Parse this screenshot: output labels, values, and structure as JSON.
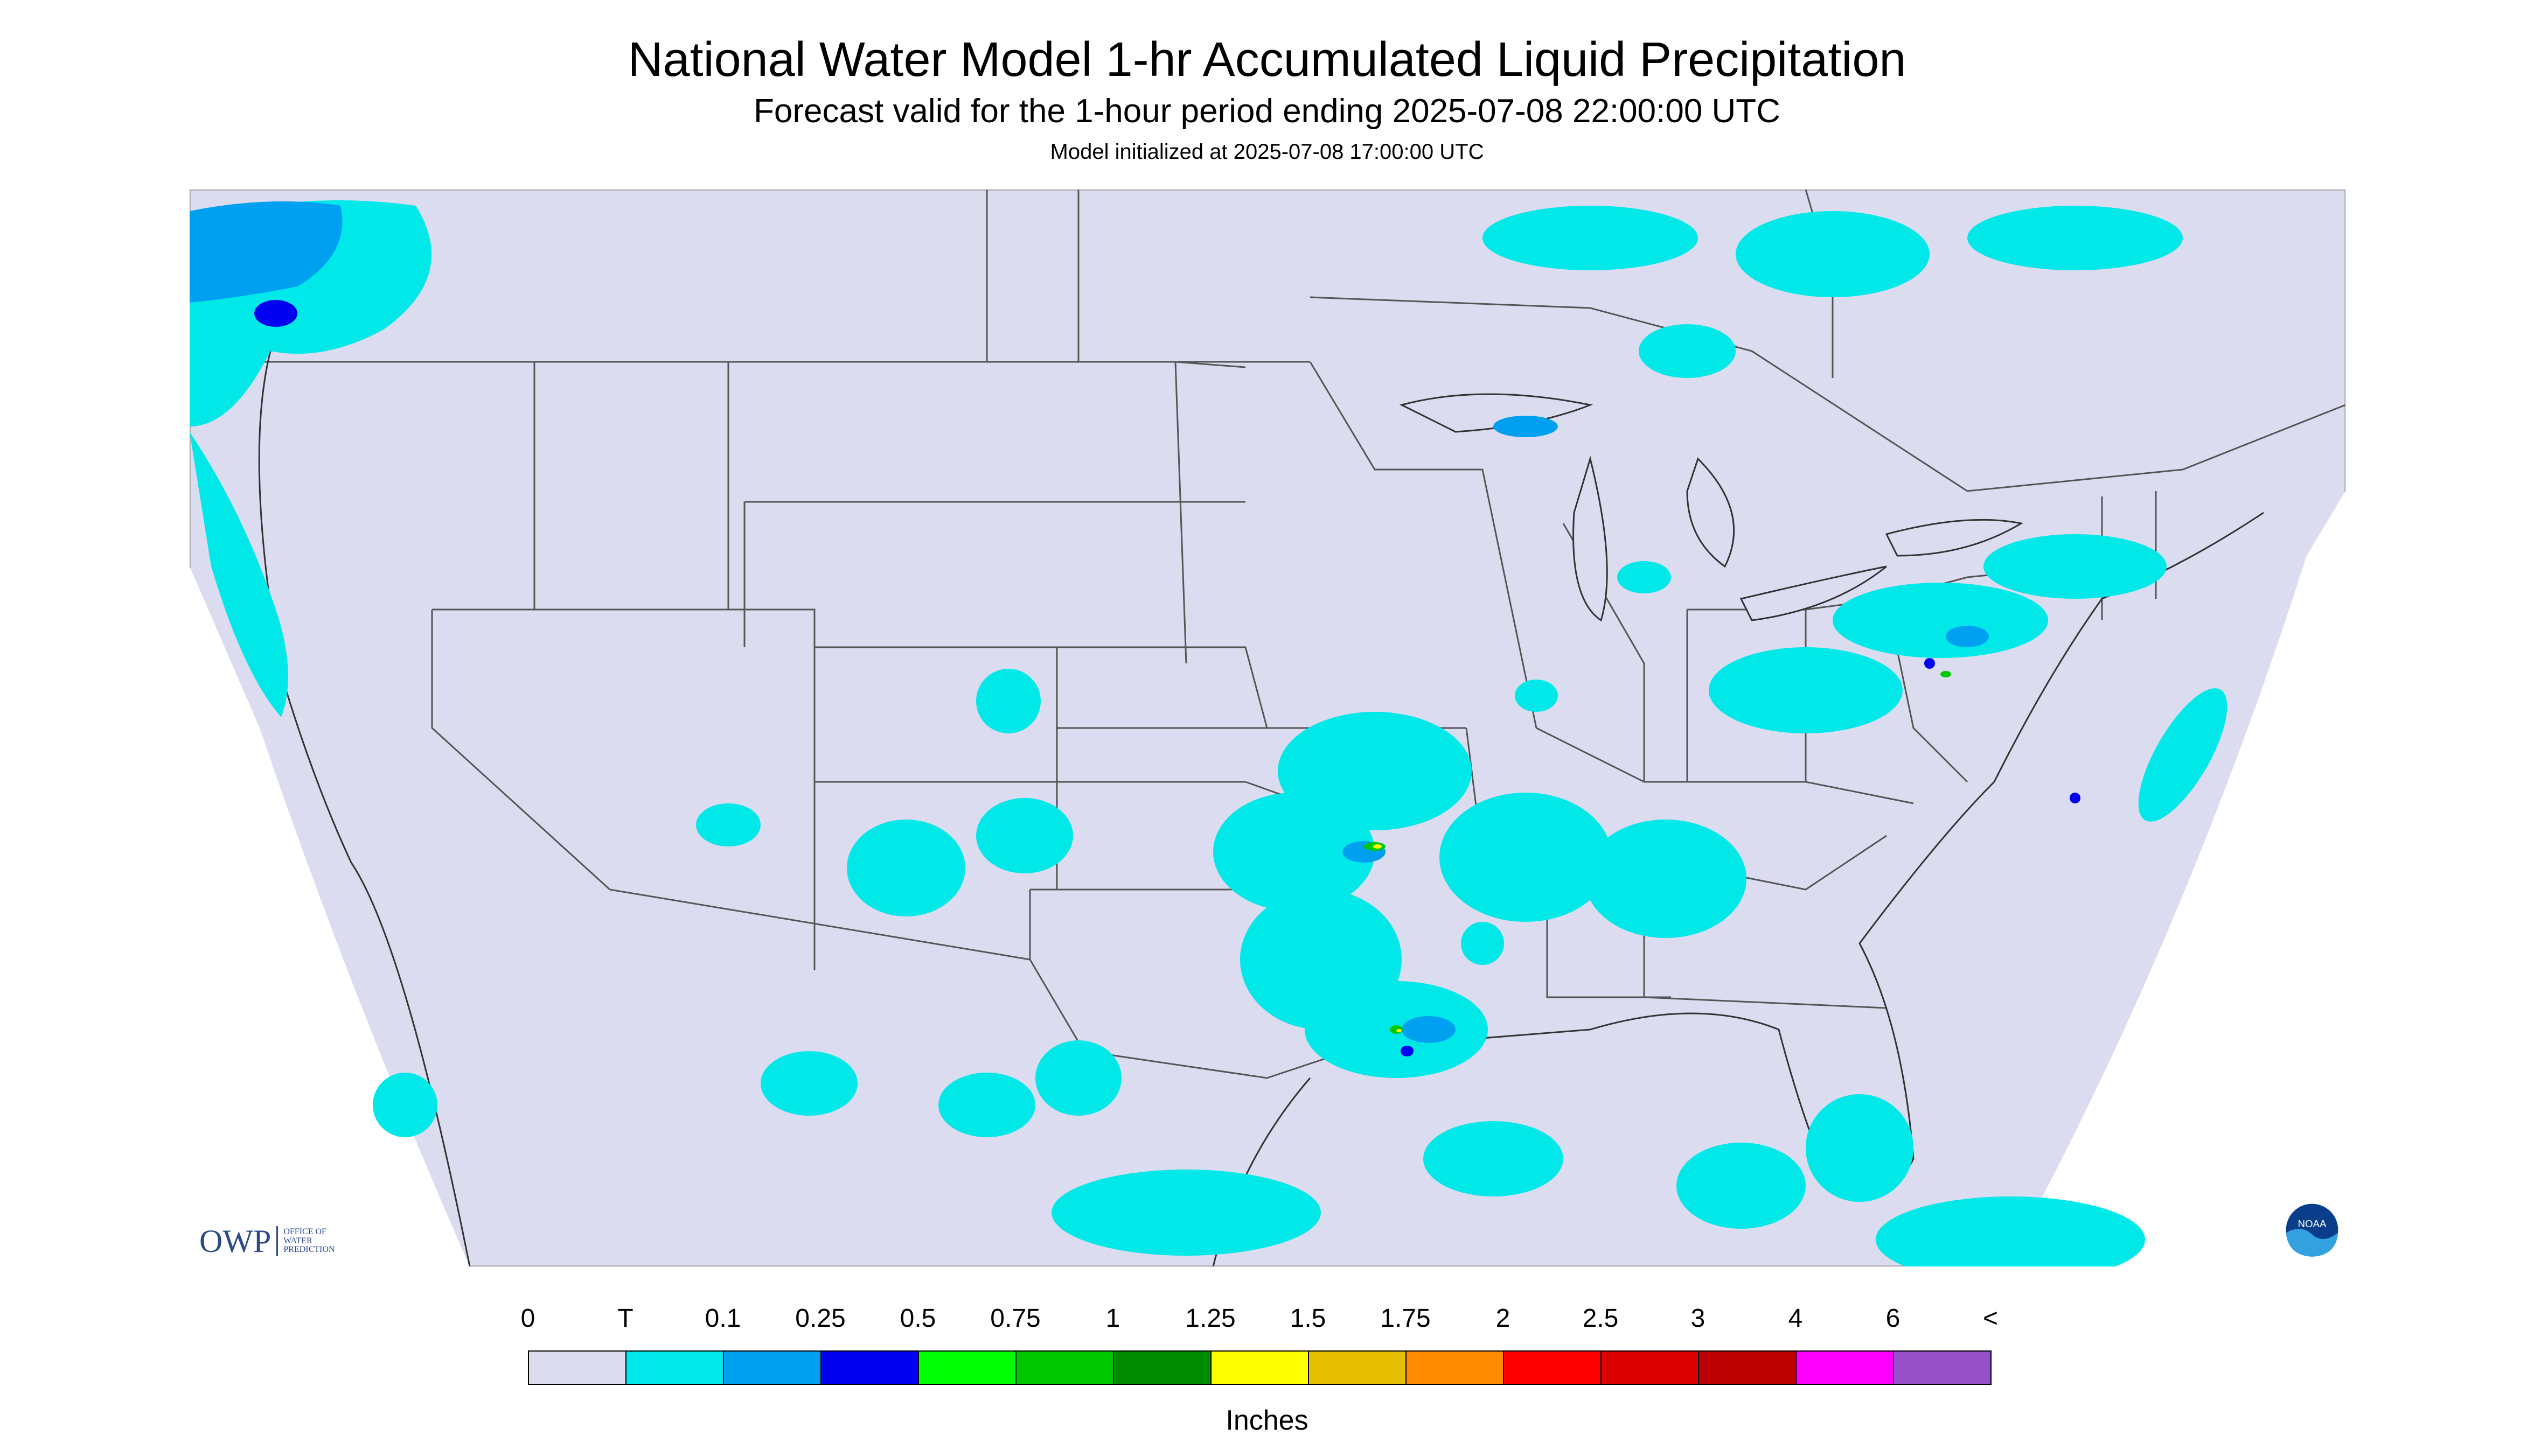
{
  "header": {
    "title": "National Water Model 1-hr Accumulated Liquid Precipitation",
    "subtitle": "Forecast valid for the 1-hour period ending 2025-07-08 22:00:00 UTC",
    "init": "Model initialized at 2025-07-08 17:00:00 UTC"
  },
  "legend": {
    "labels": [
      "0",
      "T",
      "0.1",
      "0.25",
      "0.5",
      "0.75",
      "1",
      "1.25",
      "1.5",
      "1.75",
      "2",
      "2.5",
      "3",
      "4",
      "6",
      "<"
    ],
    "colors": [
      "#dcdcf0",
      "#00e8e8",
      "#00a0f0",
      "#0000f0",
      "#00ff00",
      "#00c800",
      "#008c00",
      "#ffff00",
      "#e6be00",
      "#ff8c00",
      "#ff0000",
      "#dc0000",
      "#bc0000",
      "#ff00ff",
      "#9650c8"
    ],
    "units": "Inches"
  },
  "map_colors": {
    "background": "#dcdcf0",
    "border": "#555555",
    "trace": "#00e8e8",
    "light": "#00a0f0",
    "medium": "#0000f0",
    "heavy": "#00c800",
    "peak": "#ffff00"
  },
  "logos": {
    "owp_mark": "OWP",
    "owp_text": [
      "Office of",
      "Water",
      "Prediction"
    ],
    "noaa_mark": "NOAA",
    "noaa_icon": "noaa-logo-icon"
  }
}
